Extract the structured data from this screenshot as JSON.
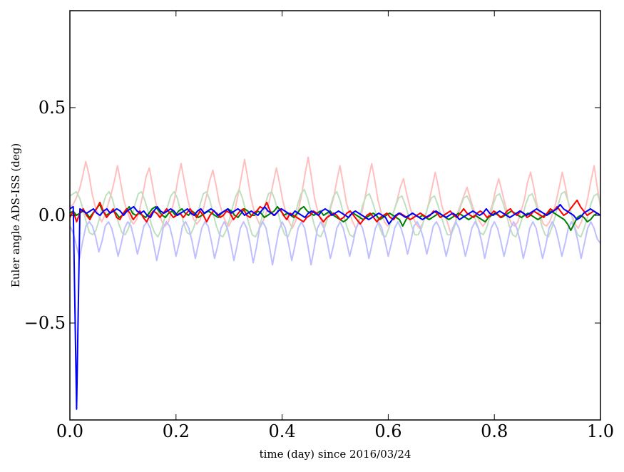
{
  "chart_data": {
    "type": "line",
    "title": "",
    "xlabel": "time (day) since 2016/03/24",
    "ylabel": "Euler angle ADS-ISS (deg)",
    "xlim": [
      0.0,
      1.0
    ],
    "ylim": [
      -0.95,
      0.95
    ],
    "xticks": [
      0.0,
      0.2,
      0.4,
      0.6,
      0.8,
      1.0
    ],
    "xtick_labels": [
      "0.0",
      "0.2",
      "0.4",
      "0.6",
      "0.8",
      "1.0"
    ],
    "yticks": [
      0.5,
      0.0,
      -0.5
    ],
    "ytick_labels": [
      "0.5",
      "0.0",
      "−0.5"
    ],
    "grid": false,
    "legend": "none",
    "series": [
      {
        "color": "#ffbfbf",
        "values": [
          0.04,
          0.05,
          0.08,
          0.12,
          0.18,
          0.25,
          0.19,
          0.1,
          0.04,
          0.0,
          -0.03,
          0.0,
          0.05,
          0.1,
          0.16,
          0.23,
          0.15,
          0.07,
          0.02,
          -0.02,
          -0.04,
          -0.02,
          0.03,
          0.1,
          0.18,
          0.22,
          0.14,
          0.06,
          0.01,
          -0.03,
          -0.05,
          -0.03,
          0.02,
          0.08,
          0.17,
          0.24,
          0.16,
          0.08,
          0.02,
          -0.02,
          -0.04,
          -0.02,
          0.03,
          0.09,
          0.16,
          0.21,
          0.14,
          0.06,
          0.01,
          -0.03,
          -0.05,
          -0.02,
          0.03,
          0.1,
          0.18,
          0.26,
          0.17,
          0.08,
          0.02,
          -0.02,
          -0.05,
          -0.02,
          0.02,
          0.08,
          0.15,
          0.22,
          0.15,
          0.07,
          0.01,
          -0.03,
          -0.06,
          -0.03,
          0.03,
          0.1,
          0.19,
          0.27,
          0.18,
          0.08,
          0.02,
          -0.02,
          -0.05,
          -0.02,
          0.03,
          0.08,
          0.16,
          0.23,
          0.15,
          0.06,
          0.01,
          -0.03,
          -0.06,
          -0.03,
          0.02,
          0.09,
          0.17,
          0.24,
          0.16,
          0.07,
          0.01,
          -0.03,
          -0.05,
          -0.03,
          0.02,
          0.07,
          0.13,
          0.17,
          0.1,
          0.04,
          -0.01,
          -0.04,
          -0.06,
          -0.04,
          0.0,
          0.06,
          0.13,
          0.2,
          0.13,
          0.05,
          0.0,
          -0.04,
          -0.09,
          -0.05,
          0.01,
          0.05,
          0.09,
          0.13,
          0.08,
          0.03,
          0.0,
          -0.03,
          -0.05,
          -0.03,
          0.01,
          0.05,
          0.12,
          0.17,
          0.11,
          0.05,
          0.0,
          -0.04,
          -0.05,
          -0.03,
          0.02,
          0.07,
          0.15,
          0.2,
          0.13,
          0.05,
          0.0,
          -0.04,
          -0.05,
          -0.03,
          0.01,
          0.06,
          0.13,
          0.2,
          0.13,
          0.05,
          0.0,
          -0.04,
          -0.06,
          -0.03,
          0.02,
          0.08,
          0.16,
          0.23,
          0.13,
          0.04
        ]
      },
      {
        "color": "#bfdfbf",
        "values": [
          0.09,
          0.1,
          0.11,
          0.08,
          0.03,
          -0.03,
          -0.08,
          -0.09,
          -0.07,
          -0.02,
          0.04,
          0.09,
          0.11,
          0.08,
          0.02,
          -0.04,
          -0.08,
          -0.09,
          -0.06,
          -0.01,
          0.05,
          0.1,
          0.11,
          0.07,
          0.02,
          -0.04,
          -0.08,
          -0.1,
          -0.07,
          -0.02,
          0.04,
          0.09,
          0.11,
          0.08,
          0.02,
          -0.04,
          -0.08,
          -0.09,
          -0.06,
          -0.01,
          0.05,
          0.1,
          0.11,
          0.07,
          0.01,
          -0.05,
          -0.09,
          -0.1,
          -0.07,
          -0.02,
          0.04,
          0.09,
          0.12,
          0.08,
          0.02,
          -0.04,
          -0.09,
          -0.1,
          -0.07,
          -0.01,
          0.05,
          0.1,
          0.11,
          0.07,
          0.01,
          -0.05,
          -0.09,
          -0.1,
          -0.06,
          -0.01,
          0.05,
          0.1,
          0.12,
          0.08,
          0.02,
          -0.04,
          -0.09,
          -0.1,
          -0.07,
          -0.02,
          0.04,
          0.09,
          0.11,
          0.07,
          0.01,
          -0.05,
          -0.09,
          -0.1,
          -0.06,
          -0.01,
          0.05,
          0.09,
          0.1,
          0.06,
          0.01,
          -0.05,
          -0.09,
          -0.1,
          -0.06,
          -0.01,
          0.04,
          0.08,
          0.09,
          0.05,
          0.0,
          -0.05,
          -0.09,
          -0.09,
          -0.06,
          -0.01,
          0.04,
          0.08,
          0.09,
          0.05,
          0.0,
          -0.05,
          -0.09,
          -0.09,
          -0.06,
          -0.01,
          0.04,
          0.08,
          0.09,
          0.06,
          0.01,
          -0.04,
          -0.08,
          -0.09,
          -0.06,
          -0.01,
          0.05,
          0.09,
          0.1,
          0.06,
          0.01,
          -0.05,
          -0.09,
          -0.1,
          -0.06,
          -0.01,
          0.05,
          0.09,
          0.1,
          0.06,
          0.01,
          -0.05,
          -0.09,
          -0.1,
          -0.06,
          -0.01,
          0.05,
          0.1,
          0.11,
          0.07,
          0.01,
          -0.05,
          -0.09,
          -0.1,
          -0.06,
          -0.01,
          0.05,
          0.09,
          0.1,
          0.06
        ]
      },
      {
        "color": "#bfbfff",
        "values": [
          -0.05,
          -0.08,
          -0.14,
          -0.2,
          -0.12,
          -0.05,
          -0.03,
          -0.05,
          -0.1,
          -0.17,
          -0.12,
          -0.05,
          -0.03,
          -0.06,
          -0.12,
          -0.19,
          -0.13,
          -0.06,
          -0.03,
          -0.05,
          -0.11,
          -0.18,
          -0.12,
          -0.05,
          -0.03,
          -0.06,
          -0.13,
          -0.21,
          -0.14,
          -0.06,
          -0.03,
          -0.05,
          -0.11,
          -0.19,
          -0.13,
          -0.05,
          -0.03,
          -0.06,
          -0.12,
          -0.2,
          -0.13,
          -0.06,
          -0.03,
          -0.05,
          -0.12,
          -0.2,
          -0.14,
          -0.06,
          -0.03,
          -0.06,
          -0.13,
          -0.21,
          -0.14,
          -0.06,
          -0.03,
          -0.06,
          -0.13,
          -0.22,
          -0.15,
          -0.06,
          -0.03,
          -0.06,
          -0.14,
          -0.23,
          -0.15,
          -0.07,
          -0.03,
          -0.06,
          -0.13,
          -0.21,
          -0.14,
          -0.06,
          -0.03,
          -0.06,
          -0.14,
          -0.23,
          -0.15,
          -0.06,
          -0.03,
          -0.06,
          -0.12,
          -0.2,
          -0.14,
          -0.06,
          -0.03,
          -0.06,
          -0.12,
          -0.19,
          -0.13,
          -0.06,
          -0.03,
          -0.06,
          -0.12,
          -0.2,
          -0.13,
          -0.06,
          -0.03,
          -0.06,
          -0.12,
          -0.19,
          -0.13,
          -0.06,
          -0.03,
          -0.06,
          -0.11,
          -0.18,
          -0.12,
          -0.05,
          -0.03,
          -0.06,
          -0.11,
          -0.18,
          -0.12,
          -0.05,
          -0.03,
          -0.06,
          -0.12,
          -0.19,
          -0.13,
          -0.06,
          -0.03,
          -0.06,
          -0.12,
          -0.19,
          -0.13,
          -0.06,
          -0.03,
          -0.06,
          -0.12,
          -0.2,
          -0.13,
          -0.06,
          -0.03,
          -0.06,
          -0.12,
          -0.19,
          -0.13,
          -0.06,
          -0.03,
          -0.06,
          -0.12,
          -0.2,
          -0.14,
          -0.06,
          -0.03,
          -0.06,
          -0.13,
          -0.2,
          -0.14,
          -0.06,
          -0.03,
          -0.06,
          -0.12,
          -0.19,
          -0.13,
          -0.06,
          -0.03,
          -0.06,
          -0.12,
          -0.2,
          -0.13,
          -0.06,
          -0.03,
          -0.06,
          -0.11,
          -0.13
        ]
      },
      {
        "color": "#008000",
        "values": [
          0.01,
          0.02,
          0.0,
          0.01,
          0.02,
          0.01,
          -0.01,
          0.01,
          0.03,
          0.05,
          0.02,
          0.0,
          0.01,
          0.02,
          0.01,
          -0.01,
          0.0,
          0.02,
          0.04,
          0.01,
          0.0,
          0.01,
          0.0,
          -0.01,
          0.01,
          0.03,
          0.04,
          0.02,
          0.0,
          -0.01,
          0.01,
          0.02,
          0.0,
          0.02,
          0.03,
          0.01,
          0.0,
          0.02,
          0.01,
          -0.01,
          0.0,
          0.01,
          0.02,
          0.01,
          0.0,
          -0.01,
          0.01,
          0.02,
          0.03,
          0.02,
          0.0,
          -0.01,
          0.01,
          0.03,
          0.02,
          0.0,
          0.0,
          0.02,
          0.01,
          -0.01,
          0.0,
          0.01,
          0.02,
          0.04,
          0.02,
          0.0,
          0.01,
          0.0,
          -0.01,
          0.01,
          0.03,
          0.04,
          0.02,
          0.01,
          0.0,
          0.01,
          0.02,
          0.0,
          0.01,
          0.02,
          0.0,
          -0.01,
          -0.02,
          -0.03,
          -0.02,
          0.0,
          0.01,
          0.0,
          -0.01,
          -0.02,
          -0.01,
          0.0,
          0.01,
          0.0,
          -0.02,
          -0.01,
          0.0,
          0.01,
          0.0,
          -0.01,
          -0.02,
          -0.05,
          -0.02,
          0.0,
          0.01,
          0.0,
          -0.01,
          0.0,
          -0.01,
          -0.02,
          -0.01,
          0.0,
          0.01,
          0.0,
          -0.01,
          -0.02,
          -0.01,
          0.0,
          0.01,
          0.0,
          -0.01,
          -0.02,
          -0.01,
          0.0,
          -0.01,
          -0.02,
          -0.03,
          -0.01,
          0.0,
          0.01,
          0.0,
          -0.01,
          0.0,
          0.01,
          0.02,
          0.01,
          0.0,
          -0.01,
          0.0,
          0.01,
          0.0,
          -0.01,
          -0.02,
          -0.01,
          0.0,
          0.01,
          0.02,
          0.01,
          0.0,
          -0.01,
          -0.02,
          -0.04,
          -0.07,
          -0.04,
          -0.01,
          0.0,
          -0.01,
          -0.03,
          -0.02,
          0.0,
          0.01,
          0.0
        ]
      },
      {
        "color": "#ff0000",
        "values": [
          -0.01,
          0.02,
          -0.03,
          0.01,
          0.03,
          0.0,
          -0.02,
          0.01,
          0.03,
          0.06,
          0.02,
          -0.01,
          0.01,
          0.03,
          -0.01,
          -0.02,
          0.01,
          0.03,
          0.01,
          -0.02,
          0.0,
          0.02,
          -0.01,
          -0.03,
          0.0,
          0.02,
          0.01,
          -0.01,
          0.01,
          0.03,
          0.01,
          -0.01,
          0.0,
          0.01,
          -0.01,
          0.01,
          0.03,
          0.01,
          -0.01,
          0.02,
          0.0,
          -0.03,
          0.0,
          0.02,
          0.01,
          -0.01,
          0.0,
          0.02,
          0.01,
          -0.02,
          0.0,
          0.02,
          0.03,
          0.0,
          -0.01,
          0.01,
          0.02,
          0.04,
          0.03,
          0.06,
          0.02,
          0.0,
          0.01,
          0.03,
          0.0,
          -0.02,
          0.01,
          0.0,
          -0.01,
          -0.02,
          -0.03,
          -0.01,
          0.0,
          0.02,
          0.01,
          -0.01,
          -0.03,
          -0.01,
          0.0,
          0.01,
          0.0,
          -0.02,
          -0.01,
          0.01,
          0.02,
          0.0,
          -0.02,
          -0.04,
          -0.02,
          0.0,
          0.01,
          -0.01,
          -0.03,
          -0.01,
          0.0,
          0.01,
          -0.01,
          -0.02,
          0.0,
          0.01,
          0.0,
          -0.01,
          -0.02,
          -0.01,
          0.0,
          0.01,
          0.0,
          -0.01,
          0.0,
          0.02,
          0.01,
          -0.01,
          0.0,
          0.01,
          0.02,
          0.0,
          -0.01,
          0.01,
          0.03,
          0.01,
          0.0,
          -0.01,
          0.01,
          0.02,
          0.01,
          -0.01,
          0.0,
          0.02,
          0.01,
          -0.01,
          0.0,
          0.02,
          0.03,
          0.01,
          0.0,
          0.02,
          0.01,
          -0.01,
          0.0,
          0.02,
          0.01,
          0.0,
          -0.01,
          0.01,
          0.03,
          0.02,
          0.04,
          0.02,
          0.0,
          0.01,
          0.03,
          0.05,
          0.07,
          0.04,
          0.02,
          0.0,
          0.01,
          0.02,
          0.01,
          0.0
        ]
      },
      {
        "color": "#0000ff",
        "values": [
          0.03,
          0.04,
          -0.9,
          0.03,
          0.02,
          0.01,
          0.02,
          0.03,
          0.01,
          0.0,
          0.02,
          0.03,
          0.01,
          0.02,
          0.03,
          0.02,
          0.0,
          0.02,
          0.03,
          0.04,
          0.02,
          0.01,
          0.02,
          0.0,
          -0.01,
          0.02,
          0.04,
          0.02,
          0.01,
          0.02,
          0.03,
          0.02,
          0.0,
          0.01,
          0.02,
          0.03,
          0.01,
          0.0,
          0.02,
          0.03,
          0.01,
          0.02,
          0.03,
          0.02,
          0.0,
          0.01,
          0.02,
          0.03,
          0.01,
          0.02,
          0.03,
          0.02,
          0.0,
          0.01,
          0.02,
          0.01,
          0.0,
          0.02,
          0.04,
          0.02,
          0.01,
          0.0,
          0.02,
          0.03,
          0.02,
          0.01,
          0.0,
          0.02,
          0.01,
          0.0,
          -0.01,
          0.01,
          0.02,
          0.01,
          0.0,
          0.02,
          0.03,
          0.02,
          0.0,
          0.01,
          0.02,
          0.01,
          0.0,
          -0.01,
          0.01,
          0.02,
          0.01,
          0.0,
          -0.01,
          -0.02,
          -0.01,
          0.0,
          0.01,
          0.0,
          -0.01,
          -0.04,
          -0.02,
          0.0,
          0.01,
          0.0,
          -0.01,
          0.0,
          0.01,
          0.0,
          -0.01,
          -0.02,
          -0.01,
          0.0,
          0.01,
          0.02,
          0.01,
          0.0,
          -0.01,
          0.0,
          0.01,
          0.0,
          -0.02,
          -0.01,
          0.0,
          0.01,
          0.02,
          0.01,
          0.0,
          0.01,
          0.03,
          0.01,
          0.0,
          0.01,
          0.02,
          0.01,
          0.0,
          -0.01,
          0.0,
          0.01,
          0.02,
          0.01,
          0.0,
          0.01,
          0.02,
          0.03,
          0.02,
          0.01,
          0.0,
          0.01,
          0.02,
          0.03,
          0.05,
          0.03,
          0.02,
          0.01,
          0.0,
          -0.02,
          -0.01,
          0.01,
          0.02,
          0.03,
          0.02,
          0.01,
          0.0
        ]
      }
    ]
  }
}
